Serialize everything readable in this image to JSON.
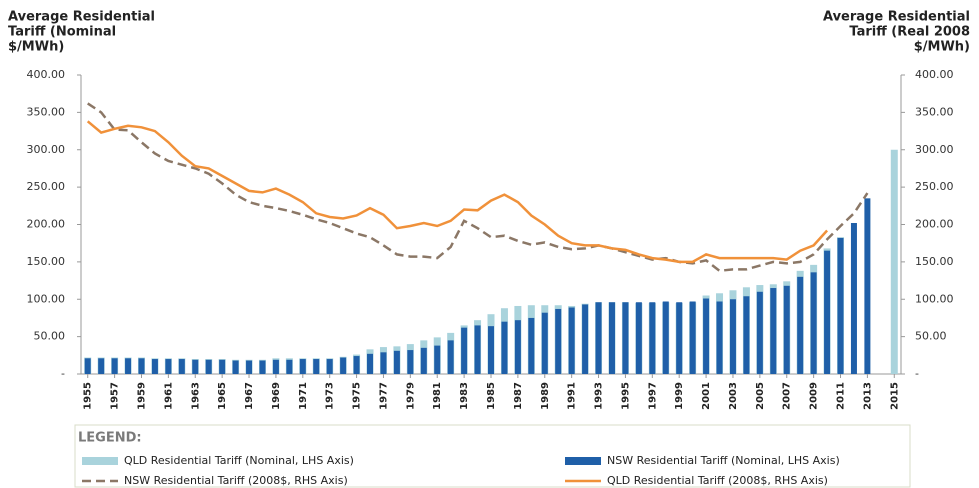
{
  "chart_data": {
    "type": "bar",
    "ylabel": [
      "Average Residential",
      "Tariff (Nominal",
      "$/MWh)"
    ],
    "y2label": [
      "Average Residential",
      "Tariff (Real 2008",
      "$/MWh)"
    ],
    "legend_title": "LEGEND:",
    "x": [
      1955,
      1956,
      1957,
      1958,
      1959,
      1960,
      1961,
      1962,
      1963,
      1964,
      1965,
      1966,
      1967,
      1968,
      1969,
      1970,
      1971,
      1972,
      1973,
      1974,
      1975,
      1976,
      1977,
      1978,
      1979,
      1980,
      1981,
      1982,
      1983,
      1984,
      1985,
      1986,
      1987,
      1988,
      1989,
      1990,
      1991,
      1992,
      1993,
      1994,
      1995,
      1996,
      1997,
      1998,
      1999,
      2000,
      2001,
      2002,
      2003,
      2004,
      2005,
      2006,
      2007,
      2008,
      2009,
      2010,
      2011,
      2012,
      2013,
      2014,
      2015
    ],
    "xlim": [
      1954.5,
      2015.5
    ],
    "xticks": [
      1955,
      1957,
      1959,
      1961,
      1963,
      1965,
      1967,
      1969,
      1971,
      1973,
      1975,
      1977,
      1979,
      1981,
      1983,
      1985,
      1987,
      1989,
      1991,
      1993,
      1995,
      1997,
      1999,
      2001,
      2003,
      2005,
      2007,
      2009,
      2011,
      2013,
      2015
    ],
    "ylim": [
      0,
      400
    ],
    "yticks": [
      {
        "value": 0,
        "label": "-"
      },
      {
        "value": 50,
        "label": "50.00"
      },
      {
        "value": 100,
        "label": "100.00"
      },
      {
        "value": 150,
        "label": "150.00"
      },
      {
        "value": 200,
        "label": "200.00"
      },
      {
        "value": 250,
        "label": "250.00"
      },
      {
        "value": 300,
        "label": "300.00"
      },
      {
        "value": 350,
        "label": "350.00"
      },
      {
        "value": 400,
        "label": "400.00"
      }
    ],
    "y2lim": [
      0,
      400
    ],
    "y2ticks": [
      {
        "value": 0,
        "label": "-"
      },
      {
        "value": 50,
        "label": "50.00"
      },
      {
        "value": 100,
        "label": "100.00"
      },
      {
        "value": 150,
        "label": "150.00"
      },
      {
        "value": 200,
        "label": "200.00"
      },
      {
        "value": 250,
        "label": "250.00"
      },
      {
        "value": 300,
        "label": "300.00"
      },
      {
        "value": 350,
        "label": "350.00"
      },
      {
        "value": 400,
        "label": "400.00"
      }
    ],
    "series": [
      {
        "name": "QLD Residential Tariff (Nominal, LHS Axis)",
        "kind": "bar",
        "color": "#a9d3dc",
        "values": [
          22,
          22,
          22,
          22,
          22,
          21,
          21,
          21,
          20,
          20,
          20,
          19,
          19,
          19,
          21,
          21,
          21,
          21,
          21,
          23,
          26,
          33,
          36,
          37,
          40,
          45,
          49,
          55,
          65,
          72,
          80,
          88,
          91,
          92,
          92,
          92,
          91,
          94,
          96,
          96,
          96,
          95,
          95,
          96,
          95,
          96,
          105,
          108,
          112,
          116,
          119,
          120,
          124,
          138,
          146,
          168,
          183,
          null,
          null,
          null,
          300
        ]
      },
      {
        "name": "NSW Residential Tariff (Nominal, LHS Axis)",
        "kind": "bar",
        "color": "#1f5fa8",
        "values": [
          21,
          21,
          21,
          21,
          21,
          20,
          20,
          20,
          19,
          19,
          19,
          18,
          18,
          18,
          19,
          19,
          20,
          20,
          20,
          22,
          24,
          27,
          29,
          31,
          32,
          35,
          38,
          45,
          62,
          65,
          64,
          70,
          72,
          75,
          82,
          87,
          89,
          93,
          96,
          96,
          96,
          96,
          96,
          97,
          96,
          97,
          101,
          97,
          100,
          104,
          110,
          115,
          118,
          130,
          136,
          165,
          182,
          202,
          235,
          null,
          null
        ]
      },
      {
        "name": "NSW Residential Tariff (2008$, RHS Axis)",
        "kind": "line",
        "dashed": true,
        "axis": "y2",
        "color": "#8b7766",
        "values": [
          362,
          350,
          327,
          326,
          310,
          295,
          285,
          280,
          275,
          268,
          255,
          240,
          230,
          225,
          222,
          218,
          213,
          207,
          202,
          195,
          188,
          183,
          172,
          160,
          157,
          157,
          155,
          170,
          205,
          195,
          183,
          185,
          178,
          173,
          176,
          170,
          167,
          168,
          172,
          168,
          163,
          158,
          153,
          155,
          150,
          148,
          152,
          138,
          140,
          140,
          145,
          150,
          148,
          150,
          160,
          180,
          198,
          215,
          242,
          null,
          null
        ]
      },
      {
        "name": "QLD Residential Tariff (2008$, RHS Axis)",
        "kind": "line",
        "dashed": false,
        "axis": "y2",
        "color": "#f0913a",
        "values": [
          338,
          323,
          328,
          332,
          330,
          325,
          310,
          292,
          278,
          275,
          265,
          255,
          245,
          243,
          248,
          240,
          230,
          215,
          210,
          208,
          212,
          222,
          213,
          195,
          198,
          202,
          198,
          205,
          220,
          219,
          232,
          240,
          230,
          212,
          200,
          185,
          175,
          172,
          172,
          168,
          166,
          160,
          155,
          153,
          150,
          150,
          160,
          155,
          155,
          155,
          155,
          155,
          153,
          165,
          172,
          192,
          null,
          null,
          null,
          null,
          null
        ]
      }
    ]
  }
}
